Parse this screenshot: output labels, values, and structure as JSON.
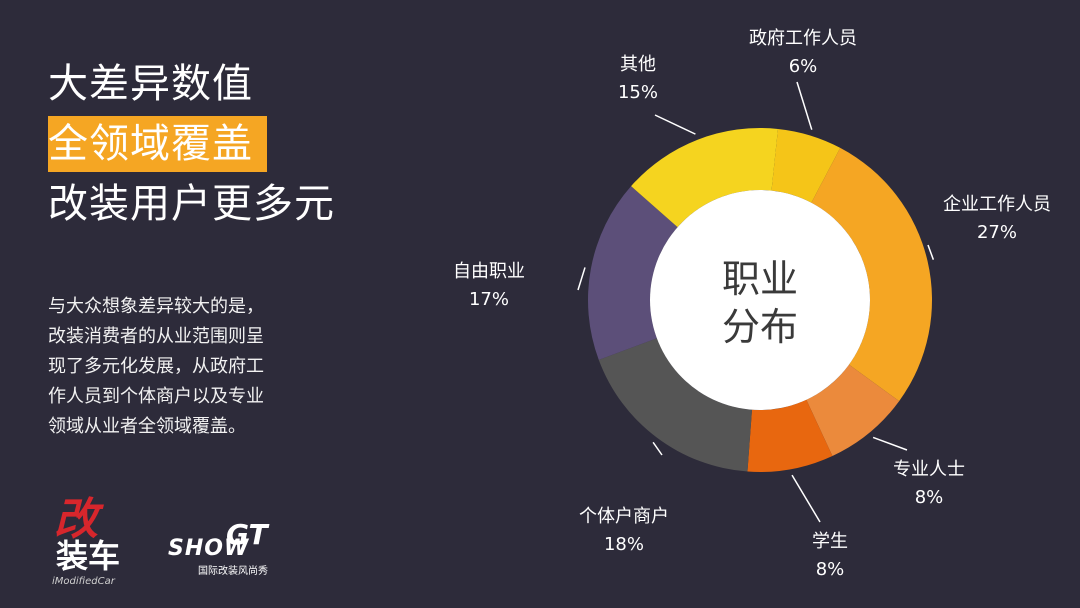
{
  "headline": {
    "line1": "大差异数值",
    "line2": "全领域覆盖",
    "line3": "改装用户更多元"
  },
  "body": {
    "lines": [
      "与大众想象差异较大的是，",
      "改装消费者的从业范围则呈",
      "现了多元化发展，从政府工",
      "作人员到个体商户以及专业",
      "领域从业者全领域覆盖。"
    ]
  },
  "logos": {
    "logo1_big": "改",
    "logo1_mid": "装车",
    "logo1_small": "iModifiedCar",
    "logo2_gt": "GT",
    "logo2_show": "SHOW",
    "logo2_sub": "国际改装风尚秀"
  },
  "chart_data": {
    "type": "pie",
    "donut": true,
    "center_label": [
      "职业",
      "分布"
    ],
    "slices": [
      {
        "label": "政府工作人员",
        "value": 6,
        "value_label": "6%",
        "color": "#f5c518"
      },
      {
        "label": "企业工作人员",
        "value": 27,
        "value_label": "27%",
        "color": "#f5a623"
      },
      {
        "label": "专业人士",
        "value": 8,
        "value_label": "8%",
        "color": "#eb8a3c"
      },
      {
        "label": "学生",
        "value": 8,
        "value_label": "8%",
        "color": "#e8670f"
      },
      {
        "label": "个体户商户",
        "value": 18,
        "value_label": "18%",
        "color": "#555555"
      },
      {
        "label": "自由职业",
        "value": 17,
        "value_label": "17%",
        "color": "#5c4f79"
      },
      {
        "label": "其他",
        "value": 15,
        "value_label": "15%",
        "color": "#f5d41f"
      }
    ]
  }
}
